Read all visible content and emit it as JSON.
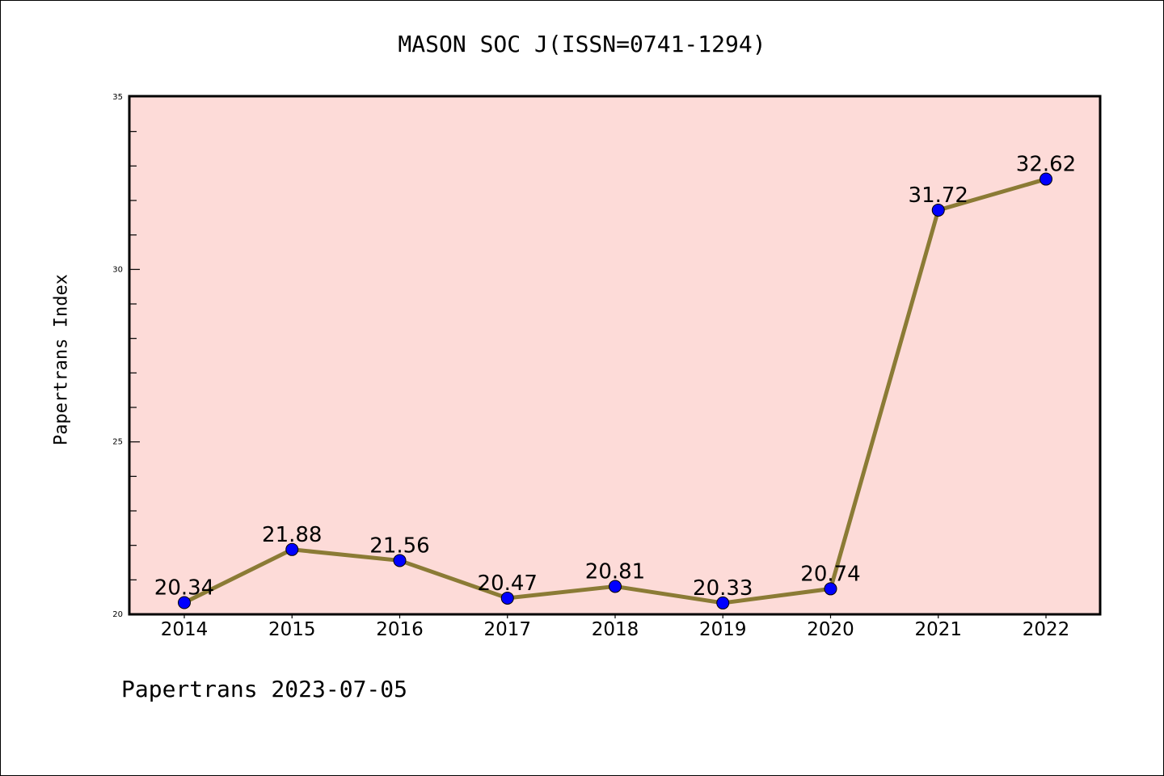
{
  "chart_data": {
    "type": "line",
    "title": "MASON SOC J(ISSN=0741-1294)",
    "xlabel": "",
    "ylabel": "Papertrans Index",
    "categories": [
      "2014",
      "2015",
      "2016",
      "2017",
      "2018",
      "2019",
      "2020",
      "2021",
      "2022"
    ],
    "series": [
      {
        "name": "Papertrans Index",
        "values": [
          20.34,
          21.88,
          21.56,
          20.47,
          20.81,
          20.33,
          20.74,
          31.72,
          32.62
        ]
      }
    ],
    "data_labels": [
      "20.34",
      "21.88",
      "21.56",
      "20.47",
      "20.81",
      "20.33",
      "20.74",
      "31.72",
      "32.62"
    ],
    "ylim": [
      20,
      35
    ],
    "yticks": [
      "20",
      "25",
      "30",
      "35"
    ],
    "grid": false,
    "colors": {
      "line": "#8b7b35",
      "marker": "#0000ff",
      "plot_bg": "#fddbd8"
    }
  },
  "footer": "Papertrans 2023-07-05"
}
